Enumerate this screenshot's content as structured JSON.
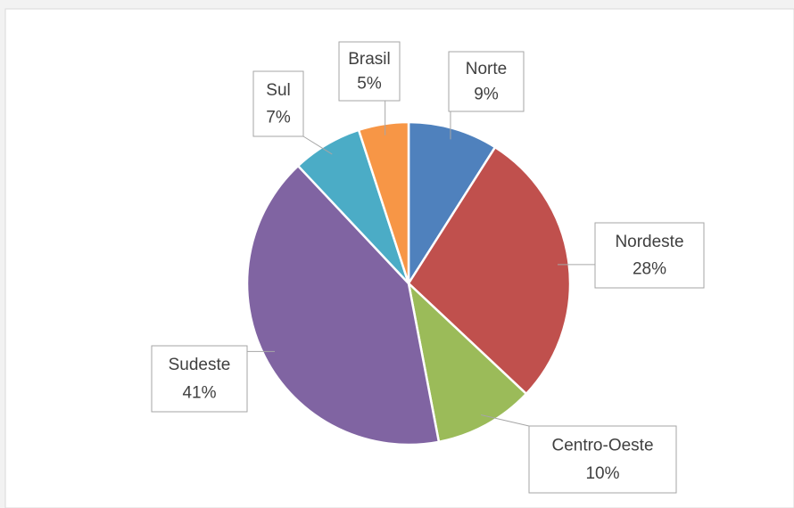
{
  "chart_data": {
    "type": "pie",
    "categories": [
      "Norte",
      "Nordeste",
      "Centro-Oeste",
      "Sudeste",
      "Sul",
      "Brasil"
    ],
    "values": [
      9,
      28,
      10,
      41,
      7,
      5
    ],
    "value_labels": [
      "9%",
      "28%",
      "10%",
      "41%",
      "7%",
      "5%"
    ],
    "colors": [
      "#4f81bd",
      "#c0504d",
      "#9bbb59",
      "#8064a2",
      "#4bacc6",
      "#f79646"
    ]
  }
}
